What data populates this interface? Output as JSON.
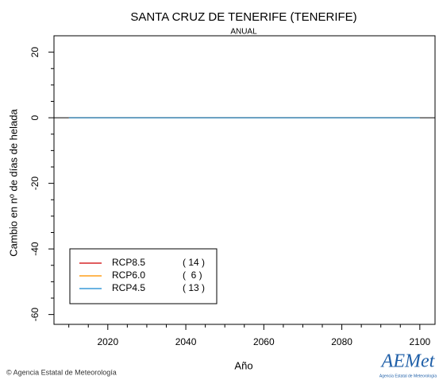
{
  "chart_data": {
    "type": "line",
    "title": "SANTA CRUZ DE TENERIFE (TENERIFE)",
    "subtitle": "ANUAL",
    "x_label": "Año",
    "y_label": "Cambio en nº de días de helada",
    "x": [
      2010,
      2100
    ],
    "series": [
      {
        "name": "RCP8.5",
        "count_label": "( 14 )",
        "color": "#d62728",
        "values": [
          0,
          0
        ]
      },
      {
        "name": "RCP6.0",
        "count_label": "(  6 )",
        "color": "#ff9f1c",
        "values": [
          0,
          0
        ]
      },
      {
        "name": "RCP4.5",
        "count_label": "( 13 )",
        "color": "#3a9ad9",
        "values": [
          0,
          0
        ]
      }
    ],
    "xlim": [
      2006.2,
      2103.9
    ],
    "ylim": [
      -63,
      25
    ],
    "xticks": [
      2020,
      2040,
      2060,
      2080,
      2100
    ],
    "xminor_ticks": [
      2010,
      2015,
      2025,
      2030,
      2035,
      2045,
      2050,
      2055,
      2065,
      2070,
      2075,
      2085,
      2090,
      2095
    ],
    "yticks": [
      20,
      0,
      -20,
      -40,
      -60
    ],
    "yminor_ticks": [
      15,
      10,
      5,
      -5,
      -10,
      -15,
      -25,
      -30,
      -35,
      -45,
      -50,
      -55
    ],
    "reference_line": 0,
    "legend": "lower left",
    "footer": "© Agencia Estatal de Meteorología",
    "logo": "AEMet",
    "logo_caption": "Agencia Estatal de Meteorología"
  }
}
